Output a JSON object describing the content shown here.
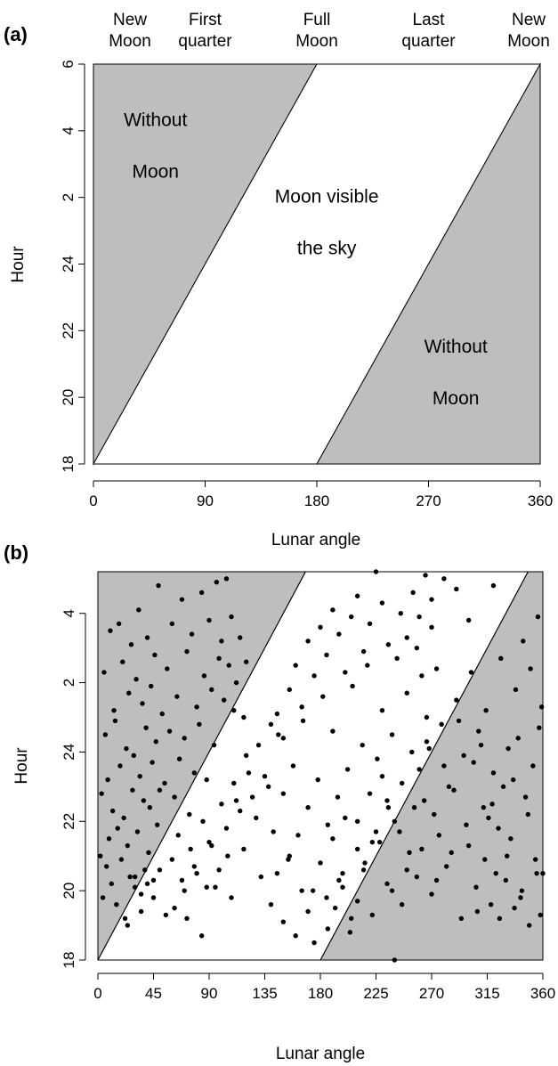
{
  "panels": [
    {
      "label": "(a)",
      "phase_labels": [
        {
          "line1": "New",
          "line2": "Moon",
          "angle": 0
        },
        {
          "line1": "First",
          "line2": "quarter",
          "angle": 90
        },
        {
          "line1": "Full",
          "line2": "Moon",
          "angle": 180
        },
        {
          "line1": "Last",
          "line2": "quarter",
          "angle": 270
        },
        {
          "line1": "New",
          "line2": "Moon",
          "angle": 360
        }
      ],
      "region_labels": [
        {
          "line1": "Without",
          "line2": "Moon",
          "angle": 50,
          "hour": 3.5
        },
        {
          "line1": "Moon visible",
          "line2": "the sky",
          "angle": 188,
          "hour": 1.2
        },
        {
          "line1": "Without",
          "line2": "Moon",
          "angle": 292,
          "hour": 20.7
        }
      ]
    },
    {
      "label": "(b)"
    }
  ],
  "chart_data": [
    {
      "type": "area",
      "title": "",
      "xlabel": "Lunar angle",
      "ylabel": "Hour",
      "xlim": [
        0,
        360
      ],
      "x_ticks": [
        0,
        90,
        180,
        270,
        360
      ],
      "y_ticks": [
        "18",
        "20",
        "22",
        "24",
        "2",
        "4",
        "6"
      ],
      "y_axis_note": "hours from 18 through midnight (24) to 6",
      "regions": [
        {
          "name": "Without Moon",
          "fill": "#bebebe",
          "polygon_angle_hour": [
            [
              0,
              18
            ],
            [
              0,
              6
            ],
            [
              180,
              6
            ]
          ]
        },
        {
          "name": "Moon visible the sky",
          "fill": "#ffffff",
          "polygon_angle_hour": [
            [
              0,
              18
            ],
            [
              180,
              6
            ],
            [
              360,
              6
            ],
            [
              180,
              18
            ]
          ]
        },
        {
          "name": "Without Moon",
          "fill": "#bebebe",
          "polygon_angle_hour": [
            [
              180,
              18
            ],
            [
              360,
              6
            ],
            [
              360,
              18
            ]
          ]
        }
      ],
      "grid": false
    },
    {
      "type": "scatter",
      "title": "",
      "xlabel": "Lunar angle",
      "ylabel": "Hour",
      "xlim": [
        0,
        360
      ],
      "x_ticks": [
        0,
        45,
        90,
        135,
        180,
        225,
        270,
        315,
        360
      ],
      "y_ticks": [
        "18",
        "20",
        "22",
        "24",
        "2",
        "4"
      ],
      "point_color": "#000000",
      "region_fill": "#bebebe",
      "grid": false,
      "points": [
        [
          2,
          21
        ],
        [
          3,
          22.8
        ],
        [
          4,
          19.8
        ],
        [
          5,
          2.3
        ],
        [
          6,
          24.5
        ],
        [
          7,
          20.7
        ],
        [
          8,
          23.2
        ],
        [
          9,
          21.5
        ],
        [
          10,
          3.5
        ],
        [
          11,
          20.2
        ],
        [
          12,
          22.3
        ],
        [
          13,
          1.2
        ],
        [
          14,
          24.9
        ],
        [
          15,
          19.6
        ],
        [
          16,
          21.8
        ],
        [
          17,
          3.7
        ],
        [
          18,
          23.6
        ],
        [
          19,
          20.9
        ],
        [
          20,
          2.6
        ],
        [
          21,
          22.1
        ],
        [
          22,
          19.2
        ],
        [
          23,
          24.1
        ],
        [
          24,
          21.3
        ],
        [
          25,
          1.7
        ],
        [
          26,
          20.4
        ],
        [
          27,
          3.1
        ],
        [
          28,
          22.9
        ],
        [
          29,
          23.9
        ],
        [
          30,
          20.1
        ],
        [
          31,
          2.1
        ],
        [
          32,
          21.7
        ],
        [
          33,
          4.1
        ],
        [
          34,
          23.3
        ],
        [
          35,
          19.9
        ],
        [
          36,
          1.4
        ],
        [
          37,
          22.6
        ],
        [
          38,
          20.6
        ],
        [
          39,
          24.7
        ],
        [
          40,
          3.3
        ],
        [
          41,
          21.1
        ],
        [
          42,
          22.4
        ],
        [
          43,
          1.9
        ],
        [
          44,
          23.7
        ],
        [
          45,
          20.3
        ],
        [
          46,
          2.8
        ],
        [
          47,
          24.3
        ],
        [
          48,
          21.9
        ],
        [
          49,
          4.8
        ],
        [
          50,
          22.9
        ],
        [
          52,
          1.1
        ],
        [
          54,
          23.1
        ],
        [
          56,
          2.4
        ],
        [
          58,
          24.6
        ],
        [
          60,
          3.7
        ],
        [
          62,
          22.7
        ],
        [
          64,
          1.6
        ],
        [
          66,
          23.8
        ],
        [
          68,
          4.4
        ],
        [
          70,
          24.4
        ],
        [
          72,
          2.9
        ],
        [
          74,
          22.2
        ],
        [
          76,
          3.4
        ],
        [
          78,
          23.4
        ],
        [
          80,
          1.3
        ],
        [
          82,
          24.8
        ],
        [
          84,
          4.6
        ],
        [
          86,
          2.2
        ],
        [
          88,
          23.2
        ],
        [
          90,
          3.8
        ],
        [
          92,
          1.8
        ],
        [
          94,
          24.2
        ],
        [
          96,
          4.9
        ],
        [
          98,
          2.7
        ],
        [
          100,
          3.2
        ],
        [
          102,
          1.5
        ],
        [
          104,
          5.0
        ],
        [
          106,
          2.5
        ],
        [
          108,
          3.9
        ],
        [
          110,
          1.2
        ],
        [
          112,
          2.0
        ],
        [
          115,
          3.3
        ],
        [
          118,
          1.0
        ],
        [
          120,
          2.6
        ],
        [
          24,
          19.0
        ],
        [
          30,
          20.4
        ],
        [
          35,
          19.4
        ],
        [
          40,
          20.2
        ],
        [
          45,
          19.8
        ],
        [
          50,
          20.6
        ],
        [
          55,
          19.3
        ],
        [
          60,
          20.9
        ],
        [
          65,
          21.6
        ],
        [
          70,
          20.0
        ],
        [
          75,
          21.2
        ],
        [
          80,
          20.5
        ],
        [
          85,
          22.0
        ],
        [
          90,
          21.4
        ],
        [
          95,
          20.1
        ],
        [
          100,
          22.5
        ],
        [
          105,
          21.0
        ],
        [
          110,
          23.1
        ],
        [
          115,
          22.3
        ],
        [
          120,
          23.9
        ],
        [
          125,
          22.7
        ],
        [
          130,
          24.2
        ],
        [
          135,
          23.3
        ],
        [
          140,
          24.8
        ],
        [
          145,
          1.1
        ],
        [
          150,
          24.4
        ],
        [
          155,
          1.8
        ],
        [
          160,
          2.5
        ],
        [
          165,
          1.3
        ],
        [
          170,
          3.2
        ],
        [
          175,
          2.2
        ],
        [
          180,
          3.6
        ],
        [
          185,
          2.8
        ],
        [
          190,
          4.1
        ],
        [
          195,
          3.4
        ],
        [
          200,
          2.3
        ],
        [
          205,
          3.9
        ],
        [
          210,
          4.5
        ],
        [
          215,
          2.9
        ],
        [
          220,
          3.7
        ],
        [
          225,
          5.2
        ],
        [
          230,
          4.3
        ],
        [
          235,
          3.1
        ],
        [
          240,
          5.3
        ],
        [
          245,
          4.0
        ],
        [
          250,
          3.3
        ],
        [
          255,
          4.6
        ],
        [
          260,
          3.9
        ],
        [
          265,
          5.1
        ],
        [
          270,
          4.4
        ],
        [
          280,
          5.0
        ],
        [
          290,
          4.7
        ],
        [
          300,
          3.8
        ],
        [
          310,
          5.4
        ],
        [
          320,
          4.8
        ],
        [
          62,
          19.5
        ],
        [
          68,
          20.3
        ],
        [
          72,
          19.2
        ],
        [
          78,
          20.7
        ],
        [
          84,
          18.7
        ],
        [
          88,
          20.1
        ],
        [
          92,
          21.3
        ],
        [
          98,
          20.6
        ],
        [
          104,
          21.8
        ],
        [
          108,
          19.8
        ],
        [
          112,
          22.6
        ],
        [
          118,
          21.2
        ],
        [
          122,
          23.4
        ],
        [
          128,
          22.1
        ],
        [
          132,
          20.4
        ],
        [
          138,
          23.0
        ],
        [
          142,
          21.7
        ],
        [
          146,
          24.5
        ],
        [
          150,
          22.8
        ],
        [
          154,
          20.9
        ],
        [
          158,
          23.6
        ],
        [
          162,
          21.6
        ],
        [
          166,
          24.9
        ],
        [
          170,
          22.4
        ],
        [
          174,
          20.0
        ],
        [
          178,
          23.2
        ],
        [
          182,
          1.6
        ],
        [
          186,
          21.9
        ],
        [
          190,
          24.6
        ],
        [
          194,
          22.7
        ],
        [
          198,
          20.5
        ],
        [
          202,
          23.5
        ],
        [
          206,
          1.9
        ],
        [
          210,
          22.0
        ],
        [
          214,
          24.2
        ],
        [
          218,
          2.5
        ],
        [
          222,
          21.4
        ],
        [
          226,
          23.8
        ],
        [
          230,
          1.2
        ],
        [
          234,
          22.6
        ],
        [
          238,
          24.5
        ],
        [
          242,
          2.7
        ],
        [
          246,
          23.1
        ],
        [
          250,
          1.7
        ],
        [
          254,
          24.0
        ],
        [
          258,
          3.0
        ],
        [
          262,
          2.2
        ],
        [
          266,
          1.0
        ],
        [
          270,
          3.6
        ],
        [
          274,
          2.4
        ],
        [
          140,
          19.6
        ],
        [
          145,
          20.5
        ],
        [
          150,
          19.1
        ],
        [
          155,
          21.0
        ],
        [
          160,
          18.7
        ],
        [
          165,
          20.0
        ],
        [
          170,
          19.4
        ],
        [
          175,
          18.5
        ],
        [
          180,
          20.8
        ],
        [
          185,
          19.8
        ],
        [
          190,
          21.5
        ],
        [
          195,
          20.3
        ],
        [
          200,
          22.1
        ],
        [
          205,
          19.2
        ],
        [
          210,
          21.2
        ],
        [
          215,
          20.6
        ],
        [
          220,
          22.8
        ],
        [
          225,
          21.7
        ],
        [
          230,
          23.3
        ],
        [
          235,
          22.4
        ],
        [
          240,
          18.0
        ],
        [
          186,
          18.9
        ],
        [
          192,
          19.5
        ],
        [
          198,
          20.1
        ],
        [
          204,
          18.8
        ],
        [
          210,
          19.7
        ],
        [
          216,
          20.8
        ],
        [
          222,
          19.3
        ],
        [
          228,
          21.4
        ],
        [
          234,
          20.2
        ],
        [
          240,
          22.0
        ],
        [
          246,
          19.6
        ],
        [
          252,
          21.1
        ],
        [
          258,
          20.4
        ],
        [
          264,
          22.6
        ],
        [
          270,
          19.9
        ],
        [
          276,
          21.6
        ],
        [
          282,
          20.7
        ],
        [
          288,
          22.9
        ],
        [
          294,
          19.2
        ],
        [
          300,
          21.3
        ],
        [
          306,
          20.1
        ],
        [
          312,
          22.4
        ],
        [
          318,
          19.6
        ],
        [
          324,
          21.8
        ],
        [
          330,
          20.3
        ],
        [
          336,
          23.2
        ],
        [
          342,
          19.8
        ],
        [
          348,
          22.2
        ],
        [
          354,
          20.9
        ],
        [
          358,
          19.3
        ],
        [
          260,
          23.5
        ],
        [
          266,
          24.3
        ],
        [
          272,
          22.2
        ],
        [
          278,
          24.8
        ],
        [
          284,
          23.0
        ],
        [
          290,
          1.5
        ],
        [
          296,
          23.9
        ],
        [
          302,
          2.3
        ],
        [
          308,
          24.6
        ],
        [
          314,
          1.2
        ],
        [
          320,
          23.4
        ],
        [
          326,
          2.7
        ],
        [
          332,
          24.1
        ],
        [
          338,
          1.8
        ],
        [
          344,
          3.2
        ],
        [
          350,
          2.4
        ],
        [
          356,
          3.9
        ],
        [
          359,
          1.3
        ],
        [
          357,
          24.7
        ],
        [
          352,
          23.6
        ],
        [
          346,
          22.7
        ],
        [
          340,
          24.4
        ],
        [
          334,
          21.5
        ],
        [
          328,
          23.0
        ],
        [
          322,
          20.5
        ],
        [
          316,
          22.1
        ],
        [
          310,
          24.2
        ],
        [
          304,
          23.7
        ],
        [
          298,
          21.9
        ],
        [
          292,
          24.9
        ],
        [
          286,
          21.1
        ],
        [
          280,
          23.6
        ],
        [
          274,
          20.3
        ],
        [
          268,
          24.1
        ],
        [
          262,
          21.2
        ],
        [
          256,
          22.4
        ],
        [
          250,
          20.6
        ],
        [
          244,
          21.7
        ],
        [
          238,
          20.0
        ],
        [
          355,
          20.5
        ],
        [
          360,
          20.5
        ],
        [
          349,
          19.0
        ],
        [
          343,
          20.0
        ],
        [
          337,
          19.5
        ],
        [
          331,
          21.0
        ],
        [
          325,
          19.2
        ],
        [
          319,
          22.5
        ],
        [
          313,
          20.9
        ],
        [
          307,
          19.4
        ]
      ]
    }
  ]
}
